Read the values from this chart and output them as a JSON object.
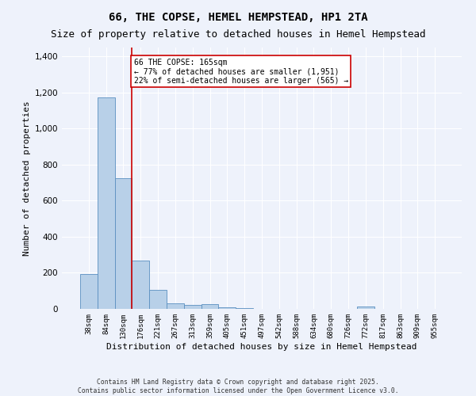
{
  "title": "66, THE COPSE, HEMEL HEMPSTEAD, HP1 2TA",
  "subtitle": "Size of property relative to detached houses in Hemel Hempstead",
  "xlabel": "Distribution of detached houses by size in Hemel Hempstead",
  "ylabel": "Number of detached properties",
  "bin_labels": [
    "38sqm",
    "84sqm",
    "130sqm",
    "176sqm",
    "221sqm",
    "267sqm",
    "313sqm",
    "359sqm",
    "405sqm",
    "451sqm",
    "497sqm",
    "542sqm",
    "588sqm",
    "634sqm",
    "680sqm",
    "726sqm",
    "772sqm",
    "817sqm",
    "863sqm",
    "909sqm",
    "955sqm"
  ],
  "bar_values": [
    192,
    1175,
    725,
    270,
    105,
    30,
    22,
    25,
    8,
    3,
    0,
    0,
    0,
    0,
    0,
    0,
    12,
    0,
    0,
    0,
    0
  ],
  "bar_color": "#b8d0e8",
  "bar_edge_color": "#5a8fc0",
  "vline_color": "#cc0000",
  "annotation_text": "66 THE COPSE: 165sqm\n← 77% of detached houses are smaller (1,951)\n22% of semi-detached houses are larger (565) →",
  "ylim": [
    0,
    1450
  ],
  "yticks": [
    0,
    200,
    400,
    600,
    800,
    1000,
    1200,
    1400
  ],
  "background_color": "#eef2fb",
  "grid_color": "#ffffff",
  "footer": "Contains HM Land Registry data © Crown copyright and database right 2025.\nContains public sector information licensed under the Open Government Licence v3.0.",
  "title_fontsize": 10,
  "subtitle_fontsize": 9,
  "xlabel_fontsize": 8,
  "ylabel_fontsize": 8
}
